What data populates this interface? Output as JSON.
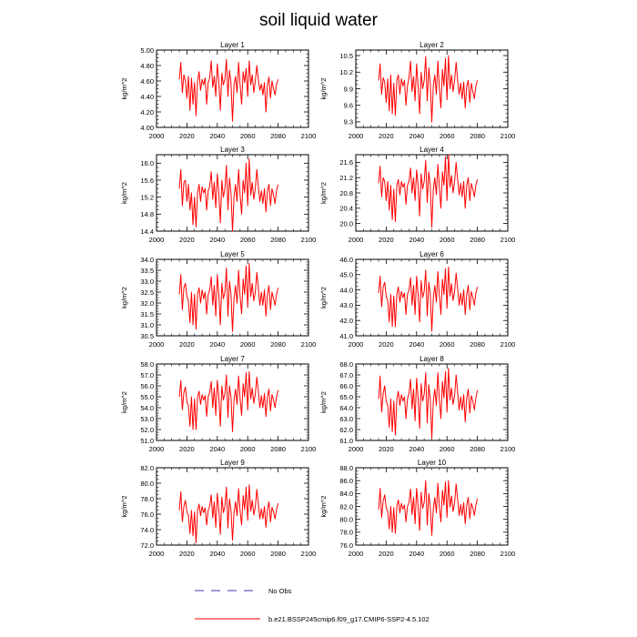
{
  "title": "soil liquid water",
  "colors": {
    "series": "#ff0000",
    "obs": "#3a3ab0",
    "axis": "#000000"
  },
  "legend": {
    "obs_label": "No Obs",
    "case_label": "b.e21.BSSP245cmip6.f09_g17.CMIP6-SSP2-4.5.102"
  },
  "chart_data": [
    {
      "type": "line",
      "title": "Layer 1",
      "ylabel": "kg/m^2",
      "xlim": [
        2000,
        2100
      ],
      "ylim": [
        4.0,
        5.0
      ],
      "xticks": [
        "2000",
        "2020",
        "2040",
        "2060",
        "2080",
        "2100"
      ],
      "yticks": [
        "4.00",
        "4.20",
        "4.40",
        "4.60",
        "4.80",
        "5.00"
      ],
      "ytick_values": [
        4.0,
        4.2,
        4.4,
        4.6,
        4.8,
        5.0
      ],
      "x_start": 2015,
      "series": [
        {
          "values": [
            4.62,
            4.84,
            4.45,
            4.68,
            4.6,
            4.38,
            4.66,
            4.22,
            4.64,
            4.3,
            4.58,
            4.15,
            4.6,
            4.72,
            4.48,
            4.62,
            4.55,
            4.64,
            4.3,
            4.58,
            4.64,
            4.86,
            4.52,
            4.66,
            4.4,
            4.82,
            4.6,
            4.22,
            4.7,
            4.55,
            4.62,
            4.88,
            4.4,
            4.74,
            4.58,
            4.08,
            4.55,
            4.66,
            4.45,
            4.84,
            4.55,
            4.3,
            4.72,
            4.58,
            4.76,
            4.4,
            4.86,
            4.55,
            4.68,
            4.45,
            4.6,
            4.8,
            4.62,
            4.48,
            4.56,
            4.42,
            4.58,
            4.2,
            4.55,
            4.65,
            4.38,
            4.6,
            4.5,
            4.42,
            4.56,
            4.62
          ]
        }
      ]
    },
    {
      "type": "line",
      "title": "Layer 2",
      "ylabel": "kg/m^2",
      "xlim": [
        2000,
        2100
      ],
      "ylim": [
        9.2,
        10.6
      ],
      "xticks": [
        "2000",
        "2020",
        "2040",
        "2060",
        "2080",
        "2100"
      ],
      "yticks": [
        "9.3",
        "9.6",
        "9.9",
        "10.2",
        "10.5"
      ],
      "ytick_values": [
        9.3,
        9.6,
        9.9,
        10.2,
        10.5
      ],
      "x_start": 2015,
      "series": [
        {
          "values": [
            10.05,
            10.35,
            9.8,
            10.1,
            10.02,
            9.65,
            10.08,
            9.5,
            10.15,
            9.45,
            10.0,
            9.42,
            10.05,
            10.15,
            9.8,
            10.08,
            9.95,
            10.05,
            9.6,
            9.95,
            10.1,
            10.4,
            9.85,
            10.12,
            9.68,
            10.35,
            9.95,
            9.45,
            10.2,
            9.9,
            10.05,
            10.48,
            9.68,
            10.28,
            10.0,
            9.3,
            9.95,
            10.15,
            9.8,
            10.4,
            9.9,
            9.55,
            10.25,
            9.95,
            10.45,
            9.7,
            10.5,
            9.9,
            10.15,
            9.85,
            10.05,
            10.38,
            10.05,
            9.8,
            10.0,
            9.72,
            10.02,
            9.55,
            9.95,
            10.05,
            9.65,
            10.0,
            9.85,
            9.72,
            9.95,
            10.05
          ]
        }
      ]
    },
    {
      "type": "line",
      "title": "Layer 3",
      "ylabel": "kg/m^2",
      "xlim": [
        2000,
        2100
      ],
      "ylim": [
        14.4,
        16.2
      ],
      "xticks": [
        "2000",
        "2020",
        "2040",
        "2060",
        "2080",
        "2100"
      ],
      "yticks": [
        "14.4",
        "14.8",
        "15.2",
        "15.6",
        "16.0"
      ],
      "ytick_values": [
        14.4,
        14.8,
        15.2,
        15.6,
        16.0
      ],
      "x_start": 2015,
      "series": [
        {
          "values": [
            15.4,
            15.85,
            15.0,
            15.55,
            15.6,
            15.1,
            15.5,
            14.9,
            15.3,
            14.55,
            15.2,
            14.5,
            15.3,
            15.5,
            15.1,
            15.45,
            15.3,
            15.4,
            14.9,
            15.35,
            15.45,
            15.8,
            15.15,
            15.55,
            14.95,
            15.75,
            15.3,
            14.6,
            15.6,
            15.2,
            15.4,
            15.95,
            14.9,
            15.65,
            15.3,
            14.4,
            15.2,
            15.5,
            15.1,
            15.85,
            15.25,
            14.8,
            15.6,
            15.3,
            16.0,
            15.0,
            16.1,
            15.25,
            15.55,
            15.15,
            15.4,
            15.85,
            15.45,
            15.1,
            15.35,
            15.05,
            15.4,
            14.85,
            15.35,
            15.5,
            15.0,
            15.4,
            15.25,
            15.05,
            15.35,
            15.5
          ]
        }
      ]
    },
    {
      "type": "line",
      "title": "Layer 4",
      "ylabel": "kg/m^2",
      "xlim": [
        2000,
        2100
      ],
      "ylim": [
        19.8,
        21.8
      ],
      "xticks": [
        "2000",
        "2020",
        "2040",
        "2060",
        "2080",
        "2100"
      ],
      "yticks": [
        "20.0",
        "20.4",
        "20.8",
        "21.2",
        "21.6"
      ],
      "ytick_values": [
        20.0,
        20.4,
        20.8,
        21.2,
        21.6
      ],
      "x_start": 2015,
      "series": [
        {
          "values": [
            21.05,
            21.5,
            20.7,
            21.2,
            21.1,
            20.6,
            21.1,
            20.35,
            21.0,
            20.1,
            20.9,
            20.05,
            21.0,
            21.15,
            20.75,
            21.1,
            20.95,
            21.05,
            20.5,
            21.0,
            21.1,
            21.45,
            20.8,
            21.2,
            20.6,
            21.4,
            21.0,
            20.2,
            21.3,
            20.9,
            21.1,
            21.65,
            20.55,
            21.35,
            21.0,
            19.9,
            20.9,
            21.2,
            20.75,
            21.55,
            20.95,
            20.4,
            21.35,
            21.0,
            21.75,
            20.6,
            21.8,
            20.95,
            21.25,
            20.8,
            21.1,
            21.6,
            21.15,
            20.75,
            21.05,
            20.7,
            21.1,
            20.4,
            21.0,
            21.2,
            20.6,
            21.05,
            20.9,
            20.7,
            21.0,
            21.15
          ]
        }
      ]
    },
    {
      "type": "line",
      "title": "Layer 5",
      "ylabel": "kg/m^2",
      "xlim": [
        2000,
        2100
      ],
      "ylim": [
        30.5,
        34.0
      ],
      "xticks": [
        "2000",
        "2020",
        "2040",
        "2060",
        "2080",
        "2100"
      ],
      "yticks": [
        "30.5",
        "31.0",
        "31.5",
        "32.0",
        "32.5",
        "33.0",
        "33.5",
        "34.0"
      ],
      "ytick_values": [
        30.5,
        31.0,
        31.5,
        32.0,
        32.5,
        33.0,
        33.5,
        34.0
      ],
      "x_start": 2015,
      "series": [
        {
          "values": [
            32.4,
            33.3,
            31.7,
            32.7,
            32.9,
            32.3,
            32.1,
            31.1,
            32.5,
            31.0,
            32.4,
            30.8,
            32.4,
            32.7,
            32.0,
            32.6,
            32.2,
            32.5,
            31.5,
            32.4,
            32.6,
            33.2,
            31.9,
            32.8,
            31.4,
            33.3,
            32.4,
            31.0,
            32.9,
            32.2,
            32.5,
            33.6,
            31.4,
            33.0,
            32.4,
            30.7,
            32.2,
            32.8,
            32.0,
            33.5,
            32.3,
            31.5,
            33.1,
            32.4,
            33.7,
            31.8,
            33.8,
            32.3,
            32.9,
            32.1,
            32.5,
            33.4,
            32.7,
            31.9,
            32.5,
            31.9,
            32.6,
            31.4,
            32.4,
            32.8,
            31.7,
            32.5,
            32.2,
            31.9,
            32.4,
            32.7
          ]
        }
      ]
    },
    {
      "type": "line",
      "title": "Layer 6",
      "ylabel": "kg/m^2",
      "xlim": [
        2000,
        2100
      ],
      "ylim": [
        41.0,
        46.0
      ],
      "xticks": [
        "2000",
        "2020",
        "2040",
        "2060",
        "2080",
        "2100"
      ],
      "yticks": [
        "41.0",
        "42.0",
        "43.0",
        "44.0",
        "45.0",
        "46.0"
      ],
      "ytick_values": [
        41.0,
        42.0,
        43.0,
        44.0,
        45.0,
        46.0
      ],
      "x_start": 2015,
      "series": [
        {
          "values": [
            43.8,
            44.9,
            42.9,
            44.2,
            44.5,
            43.6,
            43.3,
            41.9,
            43.7,
            41.6,
            43.6,
            41.6,
            43.7,
            44.2,
            43.2,
            43.9,
            43.5,
            43.8,
            42.4,
            43.7,
            44.0,
            44.8,
            43.0,
            44.3,
            42.4,
            44.9,
            43.7,
            41.9,
            44.6,
            43.5,
            43.9,
            45.3,
            42.3,
            44.5,
            43.7,
            41.3,
            43.5,
            44.3,
            43.2,
            45.2,
            43.6,
            42.4,
            44.7,
            43.7,
            45.4,
            42.8,
            45.5,
            43.6,
            44.4,
            43.3,
            43.9,
            45.1,
            44.1,
            43.0,
            43.8,
            43.0,
            44.0,
            42.4,
            43.7,
            44.3,
            42.7,
            43.9,
            43.5,
            43.0,
            43.8,
            44.2
          ]
        }
      ]
    },
    {
      "type": "line",
      "title": "Layer 7",
      "ylabel": "kg/m^2",
      "xlim": [
        2000,
        2100
      ],
      "ylim": [
        51.0,
        58.0
      ],
      "xticks": [
        "2000",
        "2020",
        "2040",
        "2060",
        "2080",
        "2100"
      ],
      "yticks": [
        "51.0",
        "52.0",
        "53.0",
        "54.0",
        "55.0",
        "56.0",
        "57.0",
        "58.0"
      ],
      "ytick_values": [
        51,
        52,
        53,
        54,
        55,
        56,
        57,
        58
      ],
      "x_start": 2015,
      "series": [
        {
          "values": [
            55.0,
            56.5,
            53.8,
            55.4,
            55.9,
            54.5,
            54.2,
            52.3,
            55.0,
            52.0,
            54.8,
            52.0,
            55.0,
            55.5,
            54.3,
            55.2,
            54.7,
            55.1,
            53.2,
            55.0,
            55.4,
            56.4,
            54.0,
            55.8,
            53.3,
            56.5,
            55.0,
            52.3,
            56.0,
            54.7,
            55.3,
            57.0,
            53.1,
            56.0,
            55.0,
            51.8,
            54.7,
            55.7,
            54.3,
            56.9,
            54.8,
            53.3,
            56.2,
            55.0,
            57.2,
            53.8,
            57.3,
            54.8,
            55.8,
            54.4,
            55.2,
            56.8,
            55.5,
            54.0,
            55.1,
            54.0,
            55.3,
            53.2,
            55.0,
            55.7,
            53.7,
            55.2,
            54.7,
            54.0,
            55.0,
            55.6
          ]
        }
      ]
    },
    {
      "type": "line",
      "title": "Layer 8",
      "ylabel": "kg/m^2",
      "xlim": [
        2000,
        2100
      ],
      "ylim": [
        61.0,
        68.0
      ],
      "xticks": [
        "2000",
        "2020",
        "2040",
        "2060",
        "2080",
        "2100"
      ],
      "yticks": [
        "61.0",
        "62.0",
        "63.0",
        "64.0",
        "65.0",
        "66.0",
        "67.0",
        "68.0"
      ],
      "ytick_values": [
        61,
        62,
        63,
        64,
        65,
        66,
        67,
        68
      ],
      "x_start": 2015,
      "series": [
        {
          "values": [
            64.8,
            66.9,
            63.6,
            65.3,
            66.0,
            64.6,
            64.2,
            62.2,
            64.8,
            61.8,
            64.6,
            61.5,
            64.8,
            65.5,
            64.2,
            65.2,
            64.6,
            65.0,
            63.0,
            64.8,
            65.3,
            66.6,
            63.9,
            65.7,
            62.8,
            66.7,
            64.9,
            62.1,
            66.2,
            64.6,
            65.2,
            67.2,
            62.6,
            66.1,
            64.8,
            61.2,
            64.6,
            65.7,
            64.2,
            67.2,
            64.7,
            63.0,
            66.4,
            64.9,
            67.3,
            63.6,
            67.6,
            64.7,
            65.8,
            64.3,
            65.1,
            67.0,
            65.4,
            63.8,
            65.0,
            63.8,
            65.2,
            62.7,
            64.9,
            65.7,
            63.5,
            65.1,
            64.6,
            63.8,
            64.9,
            65.6
          ]
        }
      ]
    },
    {
      "type": "line",
      "title": "Layer 9",
      "ylabel": "kg/m^2",
      "xlim": [
        2000,
        2100
      ],
      "ylim": [
        72.0,
        82.0
      ],
      "xticks": [
        "2000",
        "2020",
        "2040",
        "2060",
        "2080",
        "2100"
      ],
      "yticks": [
        "72.0",
        "74.0",
        "76.0",
        "78.0",
        "80.0",
        "82.0"
      ],
      "ytick_values": [
        72,
        74,
        76,
        78,
        80,
        82
      ],
      "x_start": 2015,
      "series": [
        {
          "values": [
            76.5,
            78.9,
            75.0,
            77.0,
            77.8,
            76.3,
            75.8,
            73.5,
            76.5,
            73.2,
            76.3,
            72.3,
            76.5,
            77.3,
            75.8,
            77.0,
            76.2,
            76.8,
            74.6,
            76.5,
            77.0,
            78.5,
            75.5,
            77.6,
            74.3,
            78.7,
            76.6,
            73.4,
            78.2,
            76.2,
            77.0,
            79.5,
            74.2,
            78.0,
            76.5,
            72.6,
            76.2,
            77.6,
            75.8,
            79.3,
            76.4,
            74.6,
            78.4,
            76.6,
            79.5,
            75.2,
            79.8,
            76.4,
            77.8,
            75.9,
            76.9,
            79.2,
            77.3,
            75.4,
            76.7,
            75.4,
            77.0,
            74.3,
            76.6,
            77.6,
            75.0,
            76.9,
            76.3,
            75.4,
            76.6,
            77.4
          ]
        }
      ]
    },
    {
      "type": "line",
      "title": "Layer 10",
      "ylabel": "kg/m^2",
      "xlim": [
        2000,
        2100
      ],
      "ylim": [
        76.0,
        88.0
      ],
      "xticks": [
        "2000",
        "2020",
        "2040",
        "2060",
        "2080",
        "2100"
      ],
      "yticks": [
        "76.0",
        "78.0",
        "80.0",
        "82.0",
        "84.0",
        "86.0",
        "88.0"
      ],
      "ytick_values": [
        76,
        78,
        80,
        82,
        84,
        86,
        88
      ],
      "x_start": 2015,
      "series": [
        {
          "values": [
            81.5,
            84.8,
            80.3,
            82.8,
            83.8,
            81.8,
            81.2,
            78.5,
            82.0,
            78.0,
            81.8,
            77.8,
            82.0,
            83.0,
            81.0,
            82.5,
            81.6,
            82.2,
            79.6,
            82.0,
            82.6,
            84.7,
            80.7,
            83.4,
            79.3,
            84.8,
            82.1,
            78.3,
            84.2,
            81.7,
            82.6,
            86.0,
            79.1,
            84.0,
            82.0,
            77.5,
            81.7,
            83.4,
            81.0,
            85.6,
            81.9,
            79.6,
            84.5,
            82.2,
            85.8,
            80.3,
            86.0,
            81.9,
            83.6,
            81.2,
            82.5,
            85.5,
            83.1,
            80.6,
            82.3,
            80.6,
            82.6,
            79.3,
            82.2,
            83.4,
            80.1,
            82.5,
            81.8,
            80.6,
            82.2,
            83.2
          ]
        }
      ]
    }
  ]
}
